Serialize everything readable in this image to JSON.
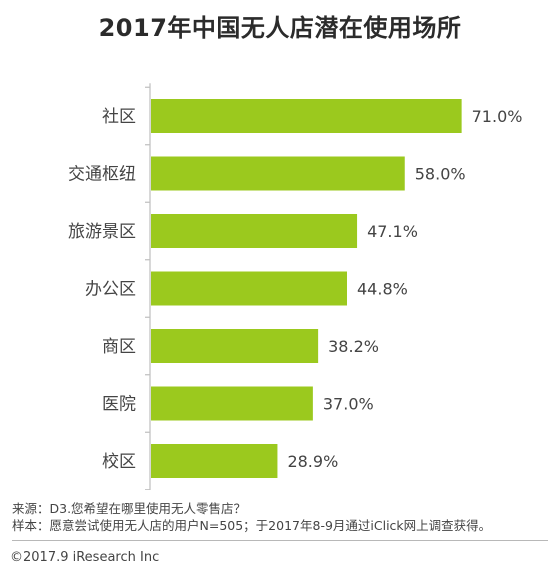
{
  "chart_data": {
    "type": "bar",
    "orientation": "horizontal",
    "title": "2017年中国无人店潜在使用场所",
    "categories": [
      "社区",
      "交通枢纽",
      "旅游景区",
      "办公区",
      "商区",
      "医院",
      "校区"
    ],
    "values": [
      71.0,
      58.0,
      47.1,
      44.8,
      38.2,
      37.0,
      28.9
    ],
    "value_labels": [
      "71.0%",
      "58.0%",
      "47.1%",
      "44.8%",
      "38.2%",
      "37.0%",
      "28.9%"
    ],
    "unit": "%",
    "xlim": [
      0,
      80
    ],
    "grid": false,
    "legend": "none",
    "bar_color": "#9bc91e",
    "axis_color": "#bfbfbf"
  },
  "footnotes": {
    "source": "来源：D3.您希望在哪里使用无人零售店？",
    "sample": "样本：愿意尝试使用无人店的用户N=505；于2017年8-9月通过iClick网上调查获得。"
  },
  "copyright": "©2017.9 iResearch Inc"
}
